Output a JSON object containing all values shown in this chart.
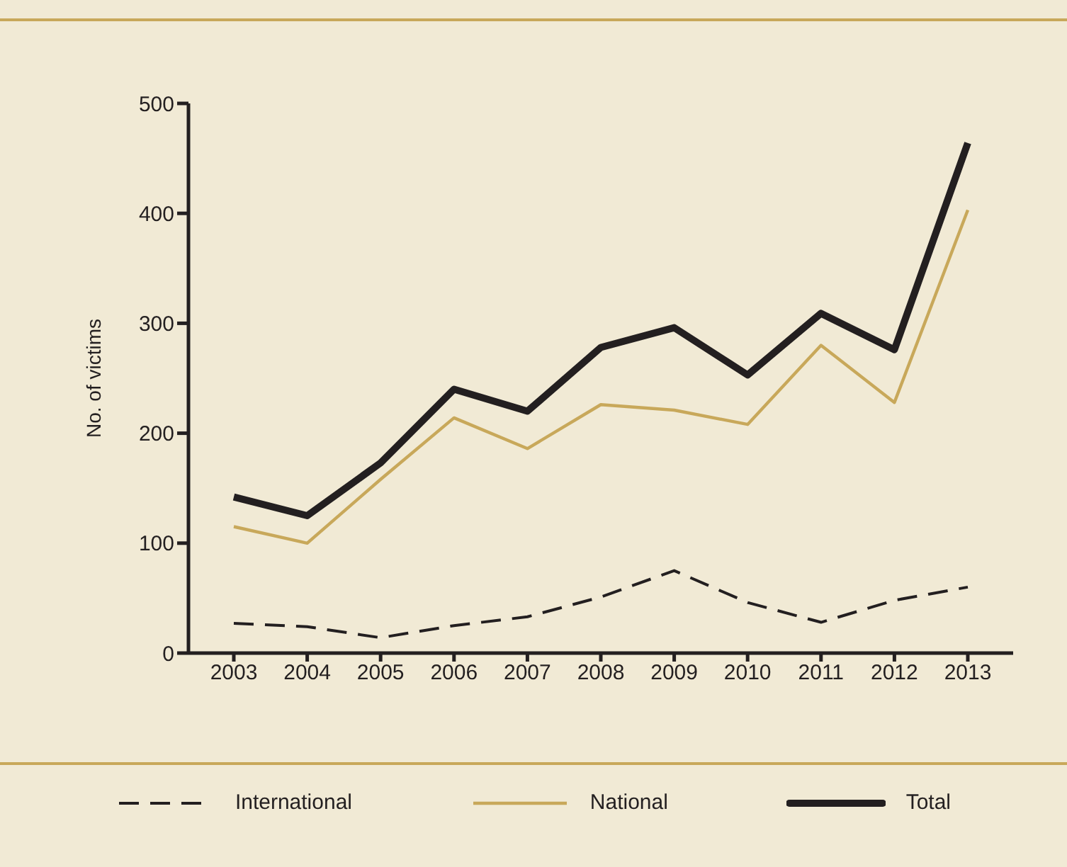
{
  "chart_data": {
    "type": "line",
    "ylabel": "No. of victims",
    "categories": [
      "2003",
      "2004",
      "2005",
      "2006",
      "2007",
      "2008",
      "2009",
      "2010",
      "2011",
      "2012",
      "2013"
    ],
    "series": [
      {
        "name": "International",
        "color": "#231f20",
        "line_style": "dashed",
        "values": [
          27,
          24,
          14,
          25,
          33,
          51,
          75,
          46,
          28,
          48,
          60
        ]
      },
      {
        "name": "National",
        "color": "#c8a85a",
        "line_style": "solid",
        "values": [
          115,
          100,
          158,
          214,
          186,
          226,
          221,
          208,
          280,
          228,
          403
        ]
      },
      {
        "name": "Total",
        "color": "#231f20",
        "line_style": "solid",
        "values": [
          142,
          125,
          173,
          240,
          220,
          278,
          296,
          253,
          309,
          276,
          464
        ]
      }
    ],
    "ylim": [
      0,
      500
    ],
    "yticks": [
      0,
      100,
      200,
      300,
      400,
      500
    ],
    "legend": "bottom",
    "marker": "none"
  }
}
